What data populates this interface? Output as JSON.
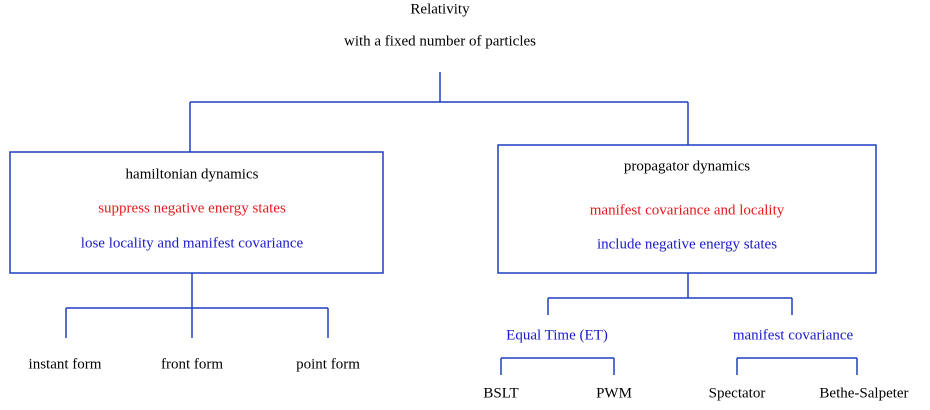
{
  "header": {
    "title": [
      "Relativity",
      "with a fixed number of particles"
    ]
  },
  "nodes": [
    {
      "label": "hamiltonian dynamics",
      "notes": [
        "suppress negative energy states",
        "lose locality and manifest covariance"
      ],
      "children": [
        {
          "label": "instant form"
        },
        {
          "label": "front form"
        },
        {
          "label": "point form"
        }
      ]
    },
    {
      "label": "propagator dynamics",
      "notes": [
        "manifest covariance and locality",
        "include negative energy states"
      ],
      "children": [
        {
          "label": "Equal Time (ET)",
          "children": [
            {
              "label": "BSLT"
            },
            {
              "label": "PWM"
            }
          ]
        },
        {
          "label": "manifest covariance",
          "children": [
            {
              "label": "Spectator"
            },
            {
              "label": "Bethe-Salpeter"
            }
          ]
        }
      ]
    }
  ]
}
